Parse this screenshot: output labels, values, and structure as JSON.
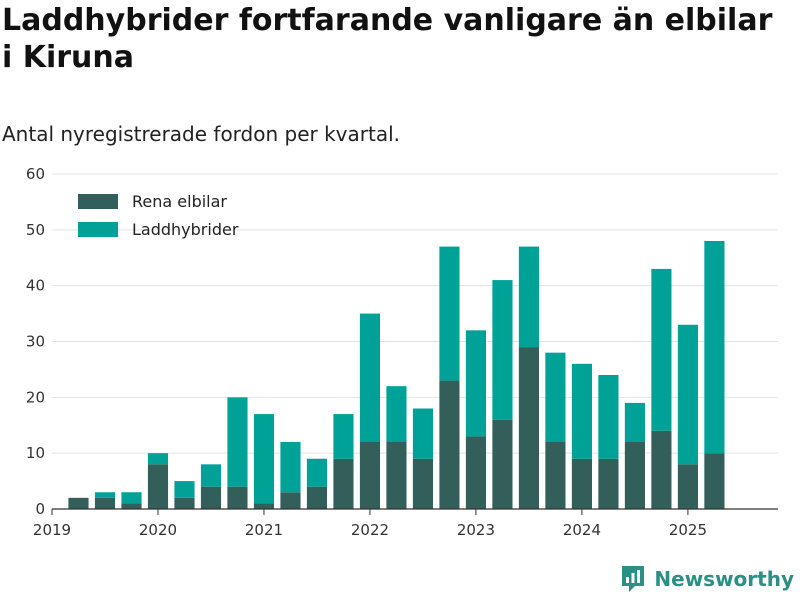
{
  "header": {
    "title": "Laddhybrider fortfarande vanligare än elbilar i Kiruna",
    "subtitle": "Antal nyregistrerade fordon per kvartal."
  },
  "brand": {
    "name": "Newsworthy",
    "icon": "newsworthy-logo-icon",
    "color": "#2a8f85"
  },
  "chart_data": {
    "type": "bar",
    "stacked": true,
    "x_ticks": [
      "2019",
      "2020",
      "2021",
      "2022",
      "2023",
      "2024",
      "2025"
    ],
    "y_ticks": [
      "0",
      "10",
      "20",
      "30",
      "40",
      "50",
      "60"
    ],
    "ylim": [
      0,
      60
    ],
    "grid": true,
    "legend": "top-left",
    "categories": [
      "2019 Q2",
      "2019 Q3",
      "2019 Q4",
      "2020 Q1",
      "2020 Q2",
      "2020 Q3",
      "2020 Q4",
      "2021 Q1",
      "2021 Q2",
      "2021 Q3",
      "2021 Q4",
      "2022 Q1",
      "2022 Q2",
      "2022 Q3",
      "2022 Q4",
      "2023 Q1",
      "2023 Q2",
      "2023 Q3",
      "2023 Q4",
      "2024 Q1",
      "2024 Q2",
      "2024 Q3",
      "2024 Q4",
      "2025 Q1",
      "2025 Q2"
    ],
    "series": [
      {
        "name": "Rena elbilar",
        "color": "#335f5b",
        "values": [
          2,
          2,
          1,
          8,
          2,
          4,
          4,
          1,
          3,
          4,
          9,
          12,
          12,
          9,
          23,
          13,
          16,
          29,
          12,
          9,
          9,
          12,
          14,
          8,
          10
        ]
      },
      {
        "name": "Laddhybrider",
        "color": "#00a298",
        "values": [
          0,
          1,
          2,
          2,
          3,
          4,
          16,
          16,
          9,
          5,
          8,
          23,
          10,
          9,
          24,
          19,
          25,
          18,
          16,
          17,
          15,
          7,
          29,
          25,
          38
        ]
      }
    ]
  }
}
